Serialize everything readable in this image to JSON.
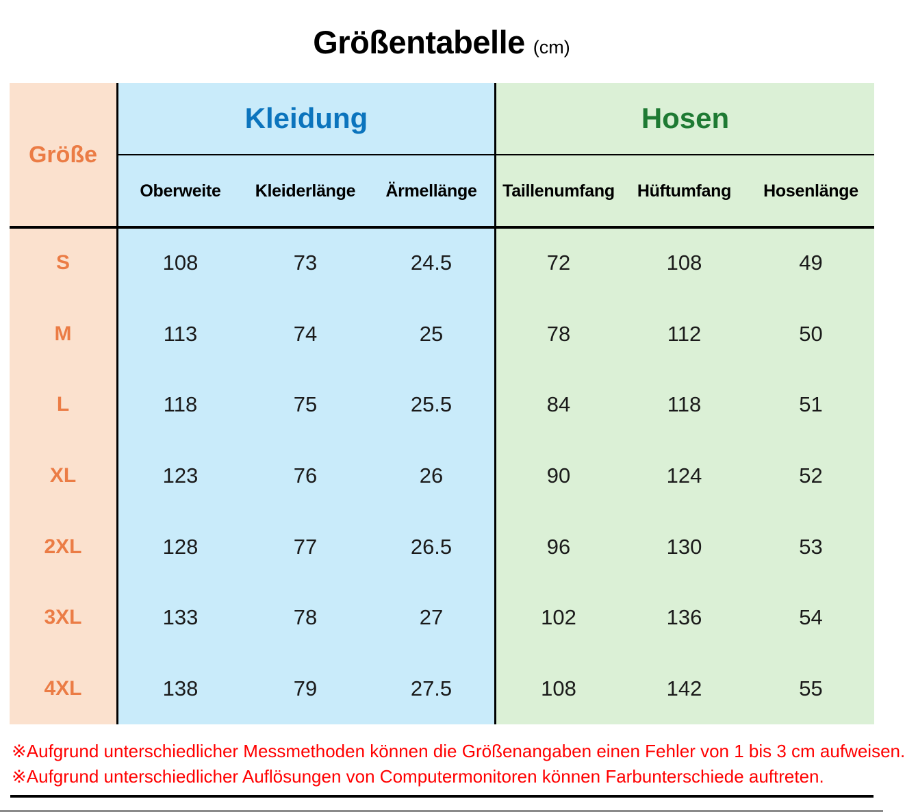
{
  "page": {
    "title": "Größentabelle",
    "unit": "(cm)"
  },
  "table": {
    "corner_label": "Größe",
    "groups": [
      {
        "label": "Kleidung",
        "columns": [
          "Oberweite",
          "Kleiderlänge",
          "Ärmellänge"
        ]
      },
      {
        "label": "Hosen",
        "columns": [
          "Taillenumfang",
          "Hüftumfang",
          "Hosenlänge"
        ]
      }
    ]
  },
  "notes": [
    "※Aufgrund unterschiedlicher Messmethoden können die Größenangaben einen Fehler von 1 bis 3 cm aufweisen.",
    "※Aufgrund unterschiedlicher Auflösungen von Computermonitoren können Farbunterschiede auftreten."
  ],
  "colors": {
    "size_column_bg": "#FBE1CE",
    "size_text": "#EB7C45",
    "kleidung_bg": "#C9EBFA",
    "kleidung_text": "#0B74BD",
    "hosen_bg": "#DBF0D6",
    "hosen_text": "#1E7A33",
    "note_text": "#FF0000",
    "line": "#000000"
  },
  "chart_data": {
    "type": "table",
    "title": "Größentabelle (cm)",
    "row_header": "Größe",
    "column_groups": [
      {
        "label": "Kleidung",
        "columns": [
          "Oberweite",
          "Kleiderlänge",
          "Ärmellänge"
        ]
      },
      {
        "label": "Hosen",
        "columns": [
          "Taillenumfang",
          "Hüftumfang",
          "Hosenlänge"
        ]
      }
    ],
    "rows": [
      {
        "size": "S",
        "values": [
          "108",
          "73",
          "24.5",
          "72",
          "108",
          "49"
        ]
      },
      {
        "size": "M",
        "values": [
          "113",
          "74",
          "25",
          "78",
          "112",
          "50"
        ]
      },
      {
        "size": "L",
        "values": [
          "118",
          "75",
          "25.5",
          "84",
          "118",
          "51"
        ]
      },
      {
        "size": "XL",
        "values": [
          "123",
          "76",
          "26",
          "90",
          "124",
          "52"
        ]
      },
      {
        "size": "2XL",
        "values": [
          "128",
          "77",
          "26.5",
          "96",
          "130",
          "53"
        ]
      },
      {
        "size": "3XL",
        "values": [
          "133",
          "78",
          "27",
          "102",
          "136",
          "54"
        ]
      },
      {
        "size": "4XL",
        "values": [
          "138",
          "79",
          "27.5",
          "108",
          "142",
          "55"
        ]
      }
    ]
  }
}
